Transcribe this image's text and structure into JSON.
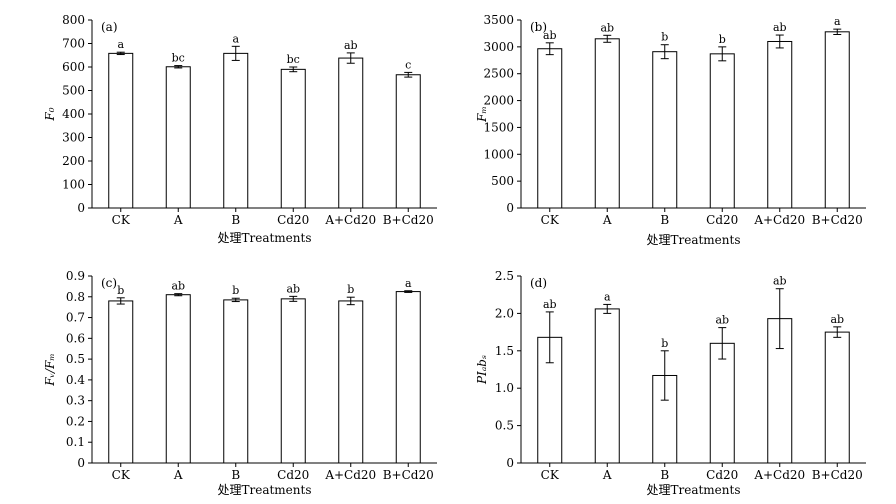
{
  "chart_data": [
    {
      "type": "bar",
      "panel_label": "(a)",
      "ylabel": "F₀",
      "xlabel": "处理Treatments",
      "categories": [
        "CK",
        "A",
        "B",
        "Cd20",
        "A+Cd20",
        "B+Cd20"
      ],
      "values": [
        658,
        601,
        658,
        590,
        638,
        567
      ],
      "errors": [
        5,
        5,
        30,
        10,
        22,
        10
      ],
      "letters": [
        "a",
        "bc",
        "a",
        "bc",
        "ab",
        "c"
      ],
      "ylim": [
        0,
        800
      ],
      "yticks": [
        "0",
        "100",
        "200",
        "300",
        "400",
        "500",
        "600",
        "700",
        "800"
      ],
      "grid": false
    },
    {
      "type": "bar",
      "panel_label": "(b)",
      "ylabel": "Fₘ",
      "xlabel": "处理Treatments",
      "categories": [
        "CK",
        "A",
        "B",
        "Cd20",
        "A+Cd20",
        "B+Cd20"
      ],
      "values": [
        2965,
        3150,
        2910,
        2870,
        3100,
        3280
      ],
      "errors": [
        110,
        65,
        130,
        130,
        120,
        50
      ],
      "letters": [
        "ab",
        "ab",
        "b",
        "b",
        "ab",
        "a"
      ],
      "ylim": [
        0,
        3500
      ],
      "yticks": [
        "0",
        "500",
        "1000",
        "1500",
        "2000",
        "2500",
        "3000",
        "3500"
      ],
      "grid": false
    },
    {
      "type": "bar",
      "panel_label": "(c)",
      "ylabel": "Fᵥ/Fₘ",
      "xlabel": "处理Treatments",
      "categories": [
        "CK",
        "A",
        "B",
        "Cd20",
        "A+Cd20",
        "B+Cd20"
      ],
      "values": [
        0.78,
        0.81,
        0.785,
        0.79,
        0.78,
        0.825
      ],
      "errors": [
        0.015,
        0.005,
        0.008,
        0.012,
        0.018,
        0.004
      ],
      "letters": [
        "b",
        "ab",
        "b",
        "ab",
        "b",
        "a"
      ],
      "ylim": [
        0,
        0.9
      ],
      "yticks": [
        "0",
        "0.1",
        "0.2",
        "0.3",
        "0.4",
        "0.5",
        "0.6",
        "0.7",
        "0.8",
        "0.9"
      ],
      "grid": false
    },
    {
      "type": "bar",
      "panel_label": "(d)",
      "ylabel": "PIₐbₛ",
      "xlabel": "处理Treatments",
      "categories": [
        "CK",
        "A",
        "B",
        "Cd20",
        "A+Cd20",
        "B+Cd20"
      ],
      "values": [
        1.68,
        2.06,
        1.17,
        1.6,
        1.93,
        1.75
      ],
      "errors": [
        0.34,
        0.06,
        0.33,
        0.21,
        0.4,
        0.07
      ],
      "letters": [
        "ab",
        "a",
        "b",
        "ab",
        "ab",
        "ab"
      ],
      "ylim": [
        0,
        2.5
      ],
      "yticks": [
        "0",
        "0.5",
        "1.0",
        "1.5",
        "2.0",
        "2.5"
      ],
      "grid": false
    }
  ]
}
